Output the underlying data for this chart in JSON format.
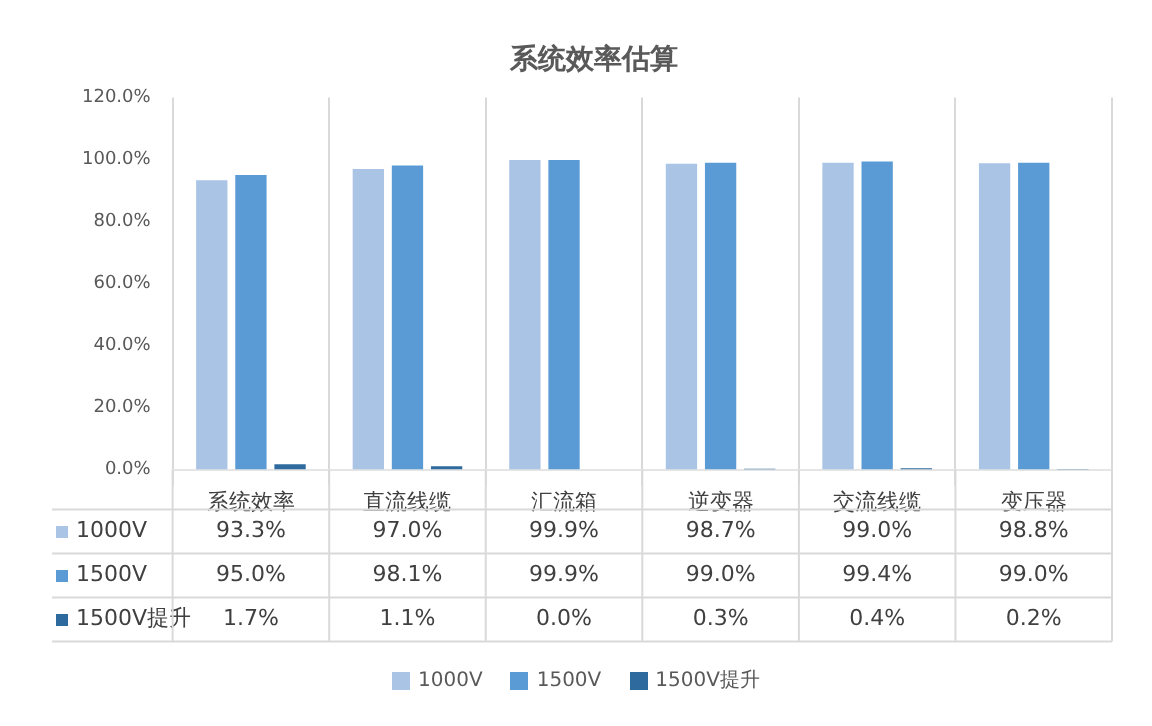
{
  "chart_data": {
    "type": "bar",
    "title": "系统效率估算",
    "categories": [
      "系统效率",
      "直流线缆",
      "汇流箱",
      "逆变器",
      "交流线缆",
      "变压器"
    ],
    "series": [
      {
        "name": "1000V",
        "color": "#a9c4e4",
        "values": [
          93.3,
          97.0,
          99.9,
          98.7,
          99.0,
          98.8
        ],
        "value_labels": [
          "93.3%",
          "97.0%",
          "99.9%",
          "98.7%",
          "99.0%",
          "98.8%"
        ]
      },
      {
        "name": "1500V",
        "color": "#5b9bd5",
        "values": [
          95.0,
          98.1,
          99.9,
          99.0,
          99.4,
          99.0
        ],
        "value_labels": [
          "95.0%",
          "98.1%",
          "99.9%",
          "99.0%",
          "99.4%",
          "99.0%"
        ]
      },
      {
        "name": "1500V提升",
        "color": "#2e6a9e",
        "values": [
          1.7,
          1.1,
          0.0,
          0.3,
          0.4,
          0.2
        ],
        "value_labels": [
          "1.7%",
          "1.1%",
          "0.0%",
          "0.3%",
          "0.4%",
          "0.2%"
        ]
      }
    ],
    "ylim": [
      0,
      120
    ],
    "yticks": [
      {
        "value": 0,
        "label": "0.0%"
      },
      {
        "value": 20,
        "label": "20.0%"
      },
      {
        "value": 40,
        "label": "40.0%"
      },
      {
        "value": 60,
        "label": "60.0%"
      },
      {
        "value": 80,
        "label": "80.0%"
      },
      {
        "value": 100,
        "label": "100.0%"
      },
      {
        "value": 120,
        "label": "120.0%"
      }
    ],
    "grid": "x",
    "legend": "bottom"
  }
}
